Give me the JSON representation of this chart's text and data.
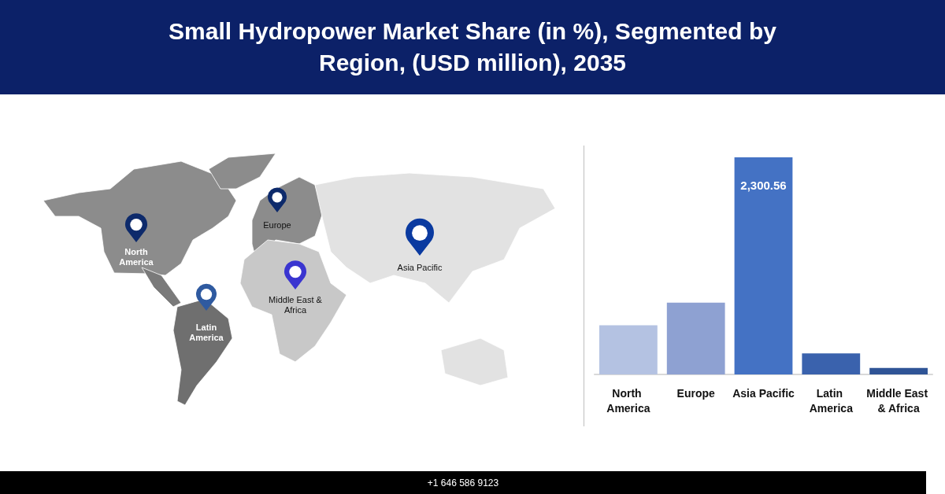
{
  "chart_data": {
    "type": "bar",
    "title": "Small Hydropower Market Share (in %), Segmented by Region, (USD million), 2035",
    "categories": [
      "North America",
      "Europe",
      "Asia Pacific",
      "Latin America",
      "Middle East & Africa"
    ],
    "values": [
      522,
      761,
      2300.56,
      222,
      68
    ],
    "colors": [
      "#b4c2e2",
      "#8ea1d2",
      "#4472c4",
      "#3a62ad",
      "#2f5496"
    ],
    "value_labels": [
      null,
      null,
      "2,300.56",
      null,
      null
    ],
    "annotations": [
      "North America",
      "Europe",
      "Asia Pacific",
      "Middle East & Africa",
      "Latin America",
      "+1 646 586 9123"
    ]
  }
}
